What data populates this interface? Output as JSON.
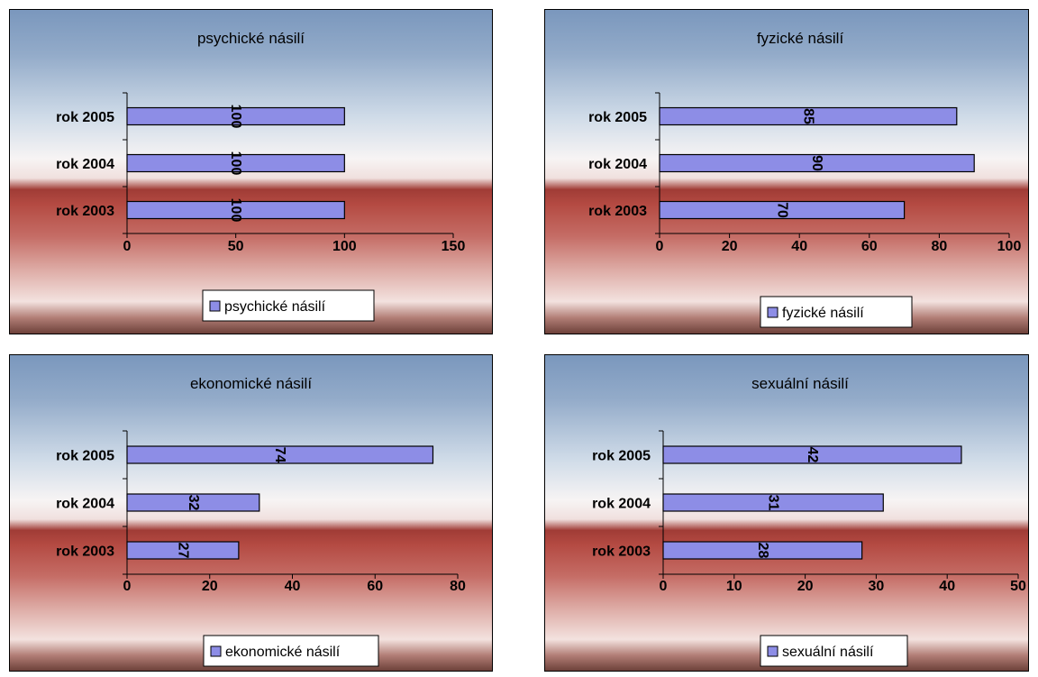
{
  "chart_data": [
    {
      "type": "bar",
      "orientation": "horizontal",
      "title": "psychické násilí",
      "categories": [
        "rok 2005",
        "rok 2004",
        "rok 2003"
      ],
      "series": [
        {
          "name": "psychické násilí",
          "values": [
            100,
            100,
            100
          ]
        }
      ],
      "xlim": [
        0,
        150
      ],
      "ticks": [
        0,
        50,
        100,
        150
      ],
      "tick_labels": [
        "0",
        "50",
        "100",
        "150"
      ],
      "legend": "bottom"
    },
    {
      "type": "bar",
      "orientation": "horizontal",
      "title": "fyzické násilí",
      "categories": [
        "rok 2005",
        "rok 2004",
        "rok 2003"
      ],
      "series": [
        {
          "name": "fyzické násilí",
          "values": [
            85,
            90,
            70
          ]
        }
      ],
      "xlim": [
        0,
        100
      ],
      "ticks": [
        0,
        20,
        40,
        60,
        80,
        100
      ],
      "tick_labels": [
        "0",
        "20",
        "40",
        "60",
        "80",
        "100"
      ],
      "legend": "bottom"
    },
    {
      "type": "bar",
      "orientation": "horizontal",
      "title": "ekonomické násilí",
      "categories": [
        "rok 2005",
        "rok 2004",
        "rok 2003"
      ],
      "series": [
        {
          "name": "ekonomické násilí",
          "values": [
            74,
            32,
            27
          ]
        }
      ],
      "xlim": [
        0,
        80
      ],
      "ticks": [
        0,
        20,
        40,
        60,
        80
      ],
      "tick_labels": [
        "0",
        "20",
        "40",
        "60",
        "80"
      ],
      "legend": "bottom"
    },
    {
      "type": "bar",
      "orientation": "horizontal",
      "title": "sexuální násilí",
      "categories": [
        "rok 2005",
        "rok 2004",
        "rok 2003"
      ],
      "series": [
        {
          "name": "sexuální násilí",
          "values": [
            42,
            31,
            28
          ]
        }
      ],
      "xlim": [
        0,
        50
      ],
      "ticks": [
        0,
        10,
        20,
        30,
        40,
        50
      ],
      "tick_labels": [
        "0",
        "10",
        "20",
        "30",
        "40",
        "50"
      ],
      "legend": "bottom"
    }
  ],
  "colors": {
    "bar_fill": "#8d8de6",
    "bar_stroke": "#000000",
    "sky_top": "#7a97bd",
    "sky_white": "#f7f4f4",
    "red_band": "#b44a42"
  }
}
